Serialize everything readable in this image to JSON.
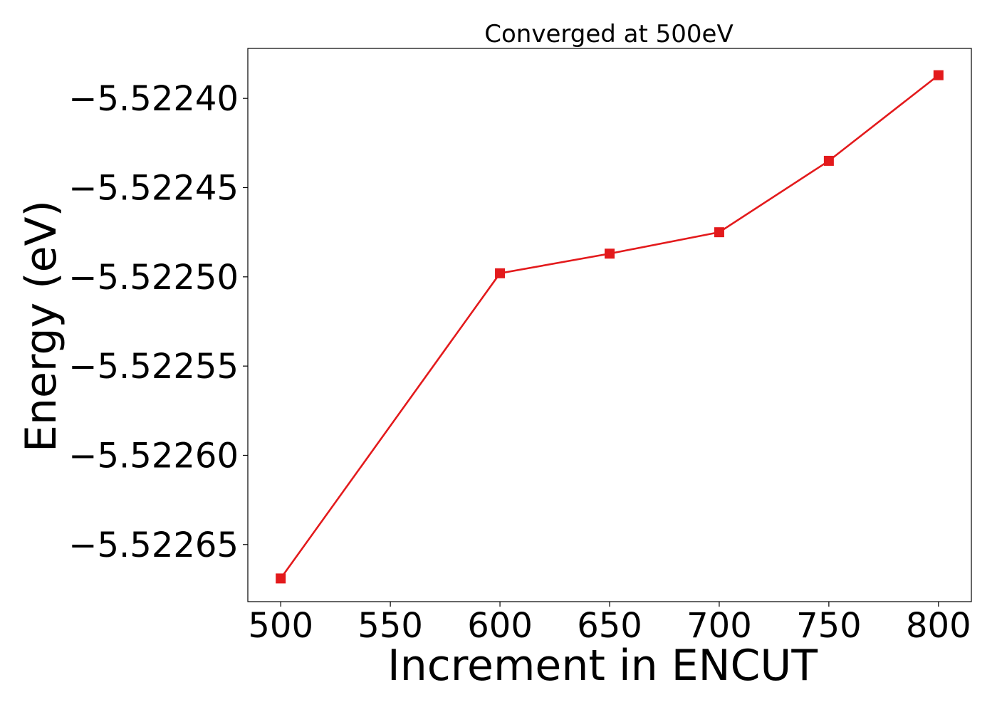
{
  "chart_data": {
    "type": "line",
    "title": "Converged at 500eV",
    "xlabel": "Increment in ENCUT",
    "ylabel": "Energy (eV)",
    "x": [
      500,
      600,
      650,
      700,
      750,
      800
    ],
    "series": [
      {
        "values": [
          -5.522669,
          -5.522498,
          -5.522487,
          -5.522475,
          -5.522435,
          -5.522387
        ],
        "color": "#e31a1c",
        "marker": "square"
      }
    ],
    "xticks": [
      500,
      550,
      600,
      650,
      700,
      750,
      800
    ],
    "xtick_labels": [
      "500",
      "550",
      "600",
      "650",
      "700",
      "750",
      "800"
    ],
    "yticks": [
      -5.52265,
      -5.5226,
      -5.52255,
      -5.5225,
      -5.52245,
      -5.5224
    ],
    "ytick_labels": [
      "−5.52265",
      "−5.52260",
      "−5.52255",
      "−5.52250",
      "−5.52245",
      "−5.52240"
    ],
    "xlim": [
      485,
      815
    ],
    "ylim": [
      -5.522682,
      -5.522372
    ],
    "grid": false
  }
}
